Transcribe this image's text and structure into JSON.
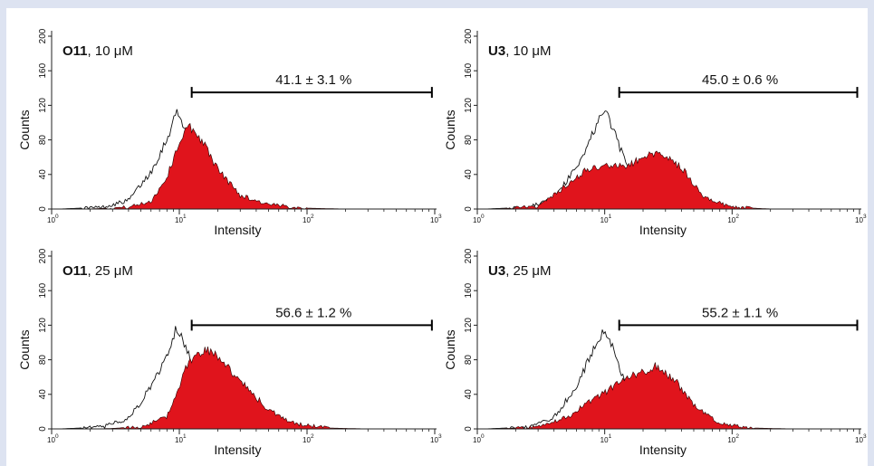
{
  "chart_data": [
    {
      "type": "histogram",
      "title_bold": "O11",
      "title_rest": ", 10 μM",
      "xlabel": "Intensity",
      "ylabel": "Counts",
      "x_scale": "log",
      "xlim": [
        1,
        1000
      ],
      "ylim": [
        0,
        200
      ],
      "yticks": [
        0,
        40,
        80,
        120,
        160,
        200
      ],
      "xticks": [
        {
          "value": 1,
          "base": "10",
          "exp": "0"
        },
        {
          "value": 10,
          "base": "10",
          "exp": "1"
        },
        {
          "value": 100,
          "base": "10",
          "exp": "2"
        },
        {
          "value": 1000,
          "base": "10",
          "exp": "3"
        }
      ],
      "gate": {
        "x_start": 12.5,
        "x_end": 950,
        "y": 135,
        "label": "41.1 ± 3.1 %"
      },
      "series": [
        {
          "role": "control",
          "style": "outline",
          "peak_x": 9.5,
          "peak_y": 113,
          "sigma": 0.3,
          "x": [
            2.5,
            4,
            6,
            8,
            9.5,
            12,
            15,
            20,
            30,
            50
          ],
          "y": [
            2,
            10,
            43,
            81,
            113,
            85,
            45,
            14,
            3,
            1
          ]
        },
        {
          "role": "treated",
          "style": "filled",
          "peak_x": 12,
          "peak_y": 96,
          "sigma": 0.25,
          "x": [
            4,
            6,
            8,
            10,
            12,
            15,
            20,
            30,
            50,
            100
          ],
          "y": [
            2,
            9,
            37,
            78,
            96,
            80,
            46,
            16,
            5,
            1
          ]
        }
      ]
    },
    {
      "type": "histogram",
      "title_bold": "U3",
      "title_rest": ", 10 μM",
      "xlabel": "Intensity",
      "ylabel": "Counts",
      "x_scale": "log",
      "xlim": [
        1,
        1000
      ],
      "ylim": [
        0,
        200
      ],
      "yticks": [
        0,
        40,
        80,
        120,
        160,
        200
      ],
      "xticks": [
        {
          "value": 1,
          "base": "10",
          "exp": "0"
        },
        {
          "value": 10,
          "base": "10",
          "exp": "1"
        },
        {
          "value": 100,
          "base": "10",
          "exp": "2"
        },
        {
          "value": 1000,
          "base": "10",
          "exp": "3"
        }
      ],
      "gate": {
        "x_start": 13,
        "x_end": 960,
        "y": 135,
        "label": "45.0 ± 0.6 %"
      },
      "series": [
        {
          "role": "control",
          "style": "outline",
          "x": [
            2.5,
            4,
            6,
            8,
            10,
            12,
            15,
            20,
            30,
            50
          ],
          "y": [
            2,
            12,
            48,
            86,
            116,
            88,
            48,
            15,
            3,
            1
          ]
        },
        {
          "role": "treated",
          "style": "filled",
          "x": [
            3,
            5,
            7,
            10,
            15,
            20,
            28,
            40,
            60,
            100
          ],
          "y": [
            3,
            26,
            44,
            50,
            50,
            60,
            66,
            48,
            14,
            2
          ]
        }
      ]
    },
    {
      "type": "histogram",
      "title_bold": "O11",
      "title_rest": ", 25 μM",
      "xlabel": "Intensity",
      "ylabel": "Counts",
      "x_scale": "log",
      "xlim": [
        1,
        1000
      ],
      "ylim": [
        0,
        200
      ],
      "yticks": [
        0,
        40,
        80,
        120,
        160,
        200
      ],
      "xticks": [
        {
          "value": 1,
          "base": "10",
          "exp": "0"
        },
        {
          "value": 10,
          "base": "10",
          "exp": "1"
        },
        {
          "value": 100,
          "base": "10",
          "exp": "2"
        },
        {
          "value": 1000,
          "base": "10",
          "exp": "3"
        }
      ],
      "gate": {
        "x_start": 12.5,
        "x_end": 950,
        "y": 120,
        "label": "56.6 ± 1.2 %"
      },
      "series": [
        {
          "role": "control",
          "style": "outline",
          "x": [
            2.5,
            4,
            6,
            8,
            9.5,
            12,
            15,
            20,
            30,
            50
          ],
          "y": [
            2,
            12,
            48,
            86,
            118,
            86,
            45,
            14,
            3,
            1
          ]
        },
        {
          "role": "treated",
          "style": "filled",
          "x": [
            5,
            8,
            10,
            12,
            16,
            20,
            30,
            50,
            80,
            150
          ],
          "y": [
            2,
            14,
            50,
            80,
            93,
            85,
            55,
            22,
            6,
            1
          ]
        }
      ]
    },
    {
      "type": "histogram",
      "title_bold": "U3",
      "title_rest": ", 25 μM",
      "xlabel": "Intensity",
      "ylabel": "Counts",
      "x_scale": "log",
      "xlim": [
        1,
        1000
      ],
      "ylim": [
        0,
        200
      ],
      "yticks": [
        0,
        40,
        80,
        120,
        160,
        200
      ],
      "xticks": [
        {
          "value": 1,
          "base": "10",
          "exp": "0"
        },
        {
          "value": 10,
          "base": "10",
          "exp": "1"
        },
        {
          "value": 100,
          "base": "10",
          "exp": "2"
        },
        {
          "value": 1000,
          "base": "10",
          "exp": "3"
        }
      ],
      "gate": {
        "x_start": 13,
        "x_end": 960,
        "y": 120,
        "label": "55.2 ± 1.1 %"
      },
      "series": [
        {
          "role": "control",
          "style": "outline",
          "x": [
            2.5,
            4,
            6,
            8,
            10,
            12,
            15,
            20,
            30,
            50
          ],
          "y": [
            2,
            13,
            50,
            88,
            118,
            87,
            48,
            15,
            3,
            1
          ]
        },
        {
          "role": "treated",
          "style": "filled",
          "x": [
            3,
            5,
            8,
            12,
            18,
            25,
            35,
            50,
            80,
            150
          ],
          "y": [
            2,
            13,
            33,
            50,
            64,
            72,
            58,
            28,
            6,
            1
          ]
        }
      ]
    }
  ],
  "colors": {
    "fill": "#e0141c",
    "outline": "#111111",
    "axis": "#222222",
    "background": "#dde3f1"
  }
}
